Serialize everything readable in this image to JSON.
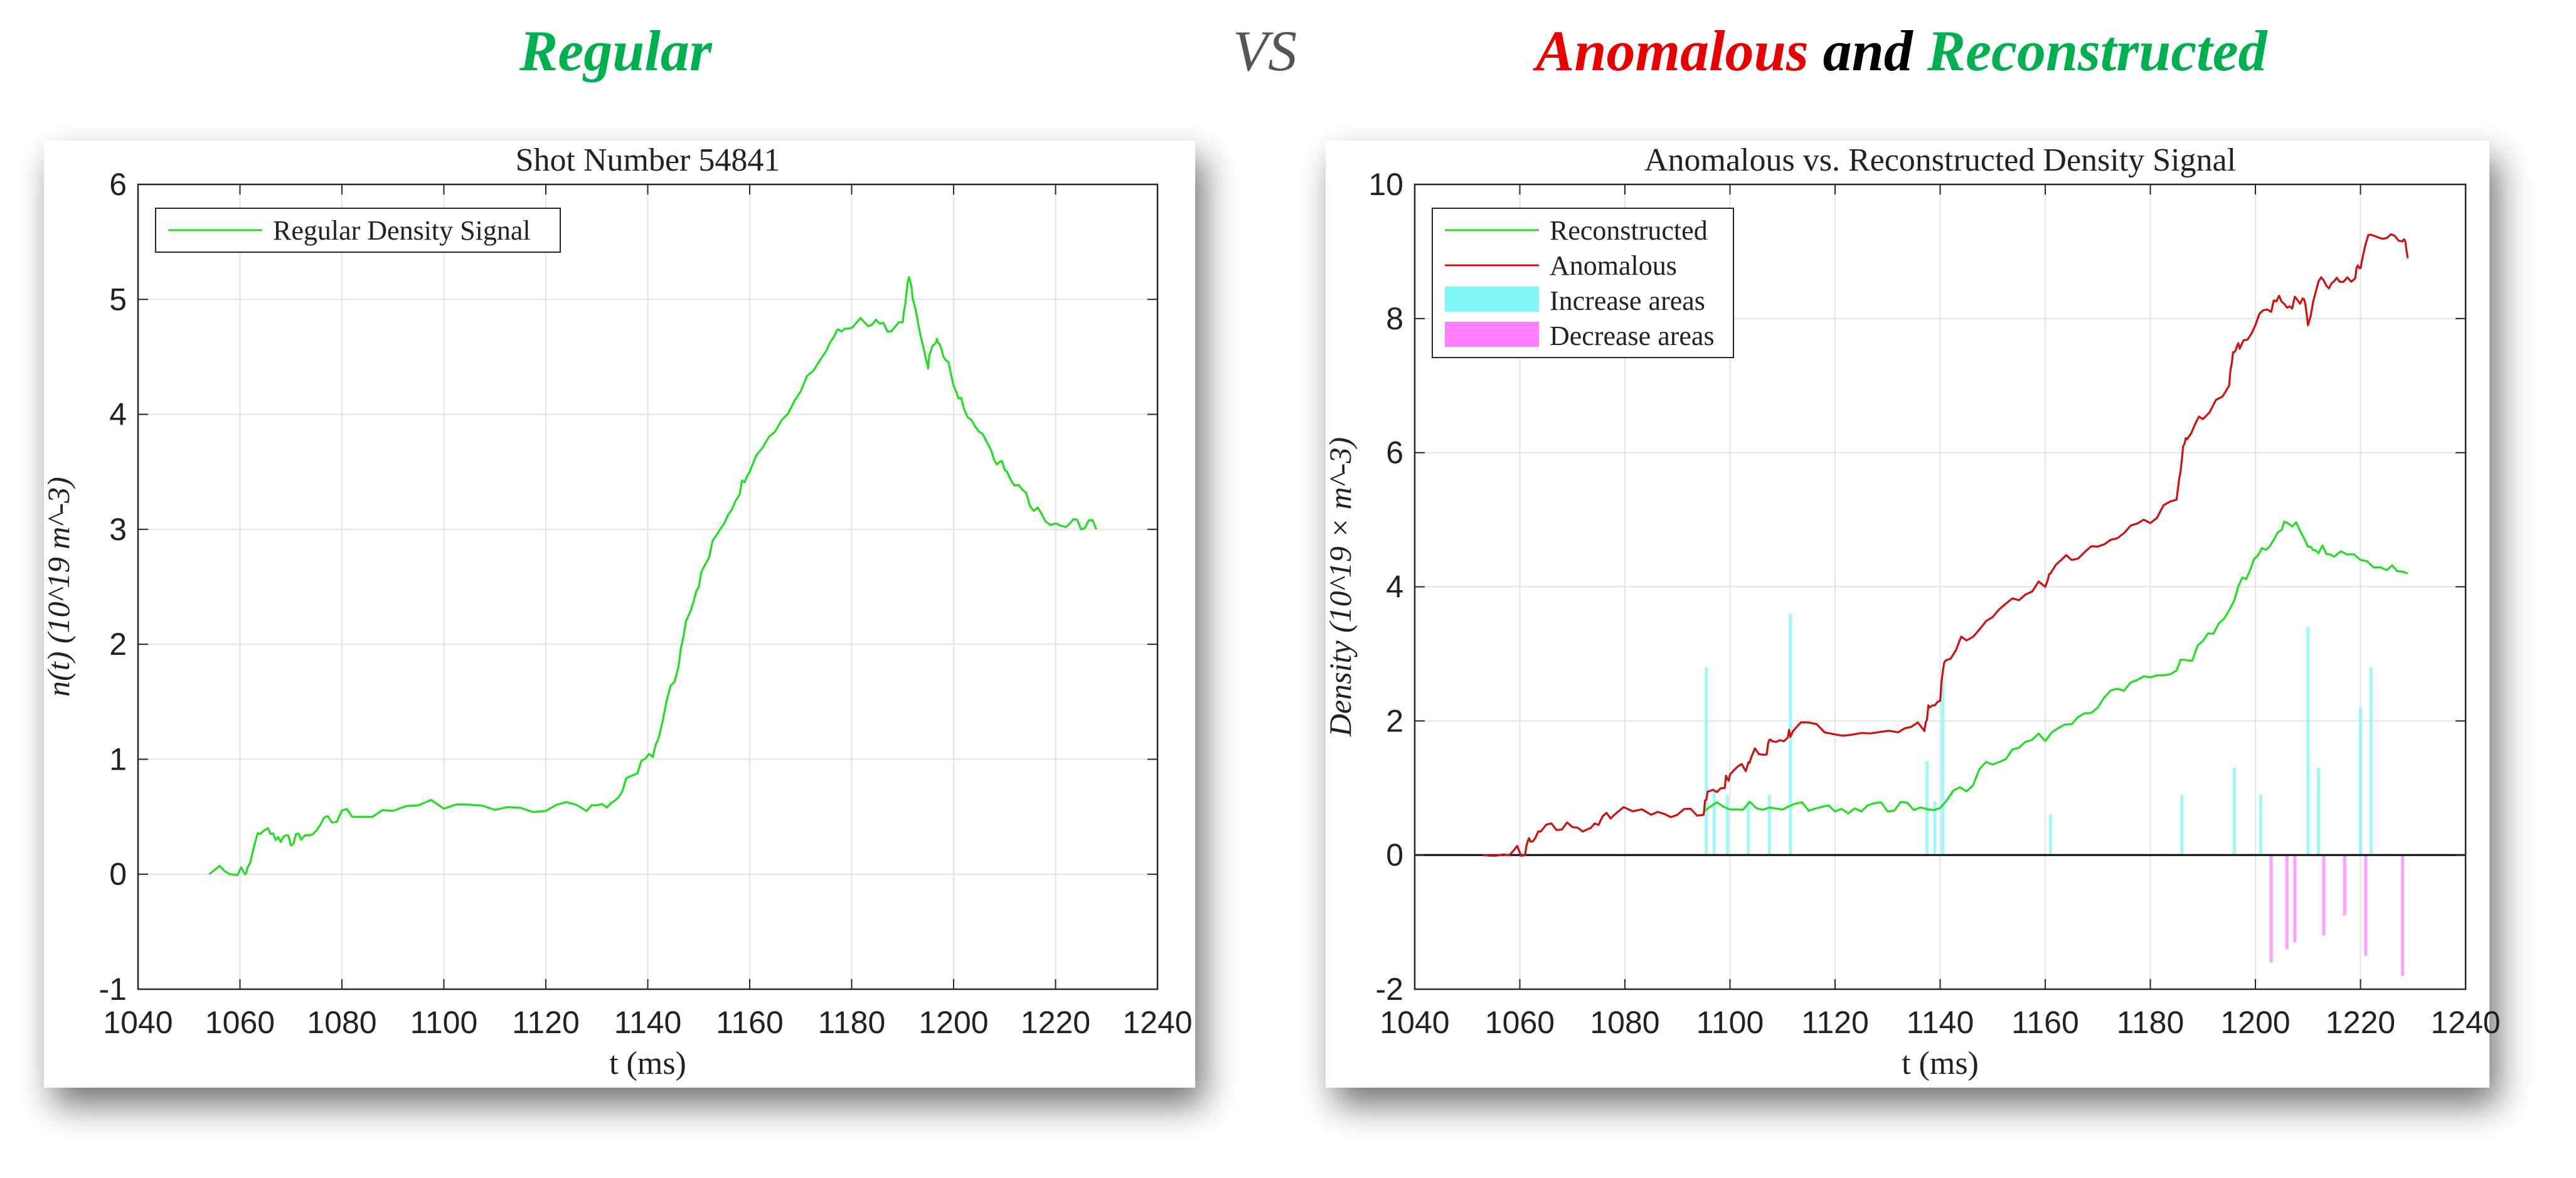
{
  "header": {
    "left_word": "Regular",
    "vs_word": "VS",
    "right_word_1": "Anomalous",
    "right_word_2": "and",
    "right_word_3": "Reconstructed"
  },
  "colors": {
    "green": "#00b050",
    "red": "#e60000",
    "black": "#000000",
    "vs_gray": "#555555",
    "signal_green": "#22dd22",
    "signal_red": "#cc1111",
    "increase_fill": "#7ff7f7",
    "decrease_fill": "#ff80ff",
    "grid": "#e3e3e3"
  },
  "chart_data": [
    {
      "type": "line",
      "title": "Shot Number 54841",
      "xlabel": "t (ms)",
      "ylabel": "n(t) (10^19 m^-3)",
      "xlim": [
        1040,
        1240
      ],
      "ylim": [
        -1,
        6
      ],
      "xticks": [
        1040,
        1060,
        1080,
        1100,
        1120,
        1140,
        1160,
        1180,
        1200,
        1220,
        1240
      ],
      "yticks": [
        -1,
        0,
        1,
        2,
        3,
        4,
        5,
        6
      ],
      "grid": true,
      "legend_position": "top-left",
      "series": [
        {
          "name": "Regular Density Signal",
          "color": "#22dd22",
          "x": [
            1054,
            1058,
            1061,
            1062,
            1064,
            1066,
            1068,
            1070,
            1072,
            1075,
            1078,
            1082,
            1090,
            1100,
            1110,
            1120,
            1128,
            1132,
            1135,
            1138,
            1141,
            1143,
            1146,
            1148,
            1150,
            1152,
            1155,
            1158,
            1160,
            1165,
            1170,
            1175,
            1178,
            1181,
            1184,
            1187,
            1190,
            1191,
            1192,
            1193,
            1195,
            1196,
            1197,
            1198,
            1200,
            1202,
            1205,
            1208,
            1210,
            1212,
            1215,
            1218,
            1222,
            1225,
            1228
          ],
          "y": [
            0.0,
            0.0,
            0.0,
            0.1,
            0.35,
            0.35,
            0.28,
            0.25,
            0.3,
            0.38,
            0.45,
            0.5,
            0.55,
            0.57,
            0.56,
            0.55,
            0.55,
            0.58,
            0.72,
            0.88,
            1.02,
            1.35,
            1.8,
            2.25,
            2.5,
            2.75,
            3.05,
            3.3,
            3.5,
            3.85,
            4.2,
            4.55,
            4.72,
            4.8,
            4.78,
            4.72,
            4.8,
            5.15,
            5.0,
            4.8,
            4.4,
            4.6,
            4.62,
            4.5,
            4.25,
            4.05,
            3.85,
            3.6,
            3.52,
            3.38,
            3.2,
            3.07,
            3.02,
            3.0,
            3.0
          ]
        }
      ]
    },
    {
      "type": "line",
      "title": "Anomalous vs. Reconstructed Density Signal",
      "xlabel": "t (ms)",
      "ylabel": "Density (10^19 × m^-3)",
      "xlim": [
        1040,
        1240
      ],
      "ylim": [
        -2,
        10
      ],
      "xticks": [
        1040,
        1060,
        1080,
        1100,
        1120,
        1140,
        1160,
        1180,
        1200,
        1220,
        1240
      ],
      "yticks": [
        -2,
        0,
        2,
        4,
        6,
        8,
        10
      ],
      "grid": true,
      "legend_position": "top-left",
      "series": [
        {
          "name": "Reconstructed",
          "color": "#22dd22",
          "x": [
            1095,
            1100,
            1105,
            1110,
            1115,
            1120,
            1125,
            1130,
            1135,
            1140,
            1145,
            1150,
            1155,
            1160,
            1165,
            1170,
            1175,
            1180,
            1185,
            1188,
            1192,
            1196,
            1199,
            1202,
            1205,
            1207,
            1210,
            1212,
            1215,
            1220,
            1225,
            1229
          ],
          "y": [
            0.65,
            0.68,
            0.7,
            0.68,
            0.66,
            0.65,
            0.65,
            0.65,
            0.67,
            0.7,
            0.95,
            1.35,
            1.6,
            1.7,
            1.95,
            2.2,
            2.45,
            2.65,
            2.75,
            2.9,
            3.3,
            3.8,
            4.25,
            4.55,
            4.85,
            4.9,
            4.6,
            4.5,
            4.45,
            4.4,
            4.25,
            4.2
          ]
        },
        {
          "name": "Anomalous",
          "color": "#cc1111",
          "x": [
            1053,
            1058,
            1061,
            1062,
            1064,
            1068,
            1072,
            1075,
            1078,
            1085,
            1090,
            1095,
            1096,
            1099,
            1100,
            1103,
            1104,
            1107,
            1108,
            1111,
            1112,
            1118,
            1125,
            1132,
            1137,
            1138,
            1140,
            1141,
            1145,
            1150,
            1155,
            1160,
            1161,
            1165,
            1170,
            1175,
            1180,
            1185,
            1186,
            1187,
            1190,
            1195,
            1196,
            1197,
            1200,
            1203,
            1205,
            1207,
            1209,
            1210,
            1212,
            1214,
            1216,
            1219,
            1220,
            1222,
            1225,
            1228,
            1229
          ],
          "y": [
            0.0,
            0.0,
            0.0,
            0.2,
            0.35,
            0.38,
            0.35,
            0.45,
            0.6,
            0.6,
            0.6,
            0.6,
            0.95,
            1.0,
            1.2,
            1.25,
            1.45,
            1.5,
            1.7,
            1.75,
            1.85,
            1.83,
            1.82,
            1.83,
            1.85,
            2.2,
            2.3,
            2.9,
            3.2,
            3.55,
            3.8,
            4.0,
            4.2,
            4.4,
            4.6,
            4.8,
            4.95,
            5.3,
            5.9,
            6.2,
            6.5,
            7.0,
            7.5,
            7.55,
            7.9,
            8.1,
            8.25,
            8.15,
            8.3,
            7.9,
            8.55,
            8.45,
            8.55,
            8.6,
            8.75,
            9.25,
            9.2,
            9.15,
            8.9
          ]
        },
        {
          "name": "Increase areas",
          "color": "#7ff7f7",
          "kind": "bars",
          "x": [
            1095.5,
            1097,
            1099.5,
            1103.5,
            1107.5,
            1111.5,
            1137.5,
            1139,
            1140.5,
            1161,
            1186,
            1196,
            1201,
            1210,
            1212,
            1220,
            1222
          ],
          "y": [
            2.8,
            1.0,
            0.9,
            0.8,
            0.9,
            3.6,
            1.4,
            0.8,
            2.6,
            0.6,
            0.9,
            1.3,
            0.9,
            3.4,
            1.3,
            2.2,
            2.8
          ]
        },
        {
          "name": "Decrease areas",
          "color": "#ff80ff",
          "kind": "bars",
          "x": [
            1203,
            1206,
            1207.5,
            1213,
            1217,
            1221,
            1228
          ],
          "y": [
            -1.6,
            -1.4,
            -1.3,
            -1.2,
            -0.9,
            -1.5,
            -1.8
          ]
        }
      ]
    }
  ]
}
